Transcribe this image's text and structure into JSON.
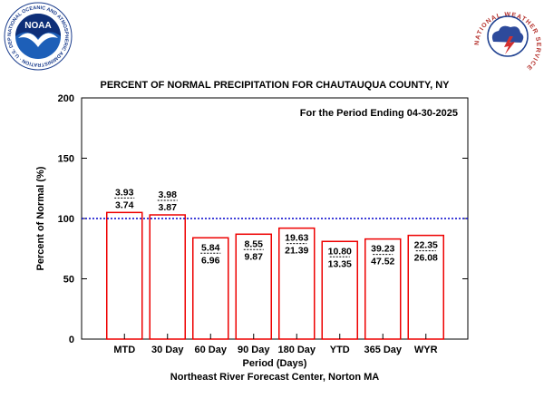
{
  "logos": {
    "noaa_text": "NOAA",
    "noaa_ring": "NATIONAL OCEANIC AND ATMOSPHERIC ADMINISTRATION · U.S. DEPARTMENT OF COMMERCE",
    "nws_ring": "NATIONAL WEATHER SERVICE"
  },
  "chart_data": {
    "type": "bar",
    "title": "PERCENT OF NORMAL PRECIPITATION FOR CHAUTAUQUA COUNTY, NY",
    "subtitle": "For the Period Ending 04-30-2025",
    "xlabel": "Period (Days)",
    "ylabel": "Percent of Normal (%)",
    "footer": "Northeast River Forecast Center, Norton MA",
    "ylim": [
      0,
      200
    ],
    "yticks": [
      "0",
      "50",
      "100",
      "150",
      "200"
    ],
    "reference_line": 100,
    "grid": false,
    "categories": [
      "MTD",
      "30 Day",
      "60 Day",
      "90 Day",
      "180 Day",
      "YTD",
      "365 Day",
      "WYR"
    ],
    "values": [
      105,
      103,
      84,
      87,
      92,
      81,
      83,
      86
    ],
    "observed": [
      "3.93",
      "3.98",
      "5.84",
      "8.55",
      "19.63",
      "10.80",
      "39.23",
      "22.35"
    ],
    "normal": [
      "3.74",
      "3.87",
      "6.96",
      "9.87",
      "21.39",
      "13.35",
      "47.52",
      "26.08"
    ],
    "bar_color": "#ee0000",
    "reference_color": "#0000cc"
  }
}
